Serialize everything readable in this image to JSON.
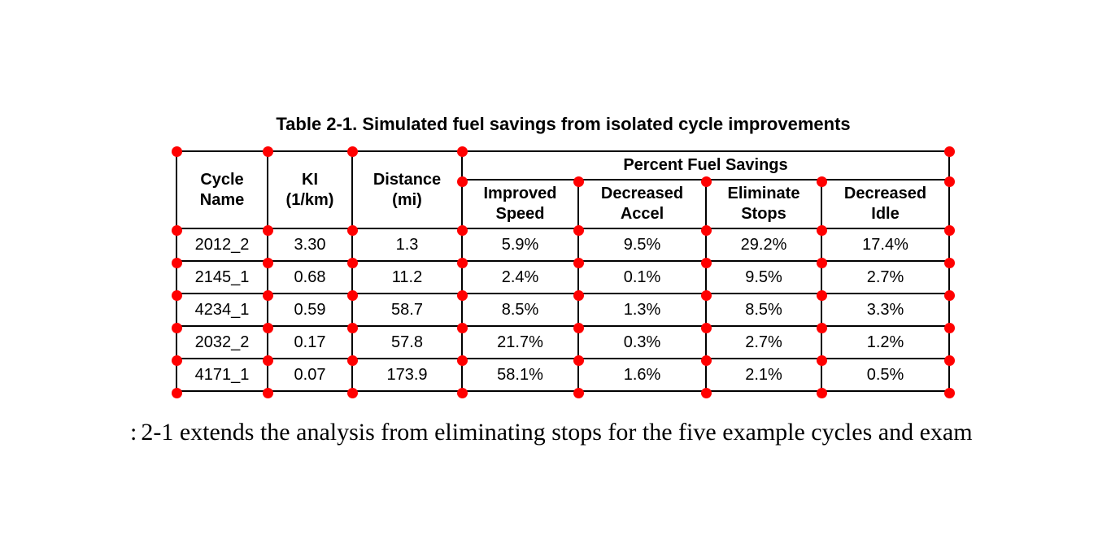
{
  "table": {
    "title": "Table 2-1. Simulated fuel savings from isolated cycle improvements",
    "header": {
      "cycle_name": "Cycle\nName",
      "ki": "KI\n(1/km)",
      "distance": "Distance\n(mi)",
      "group": "Percent Fuel Savings",
      "sub": [
        "Improved\nSpeed",
        "Decreased\nAccel",
        "Eliminate\nStops",
        "Decreased\nIdle"
      ]
    },
    "rows": [
      {
        "cycle": "2012_2",
        "ki": "3.30",
        "distance": "1.3",
        "improved_speed": "5.9%",
        "decreased_accel": "9.5%",
        "eliminate_stops": "29.2%",
        "decreased_idle": "17.4%"
      },
      {
        "cycle": "2145_1",
        "ki": "0.68",
        "distance": "11.2",
        "improved_speed": "2.4%",
        "decreased_accel": "0.1%",
        "eliminate_stops": "9.5%",
        "decreased_idle": "2.7%"
      },
      {
        "cycle": "4234_1",
        "ki": "0.59",
        "distance": "58.7",
        "improved_speed": "8.5%",
        "decreased_accel": "1.3%",
        "eliminate_stops": "8.5%",
        "decreased_idle": "3.3%"
      },
      {
        "cycle": "2032_2",
        "ki": "0.17",
        "distance": "57.8",
        "improved_speed": "21.7%",
        "decreased_accel": "0.3%",
        "eliminate_stops": "2.7%",
        "decreased_idle": "1.2%"
      },
      {
        "cycle": "4171_1",
        "ki": "0.07",
        "distance": "173.9",
        "improved_speed": "58.1%",
        "decreased_accel": "1.6%",
        "eliminate_stops": "2.1%",
        "decreased_idle": "0.5%"
      }
    ]
  },
  "caption": {
    "fragment": ":",
    "text": "2-1 extends the analysis from eliminating stops for the five example cycles and exam"
  },
  "annotations": {
    "corner_dot_color": "#ff0000"
  }
}
